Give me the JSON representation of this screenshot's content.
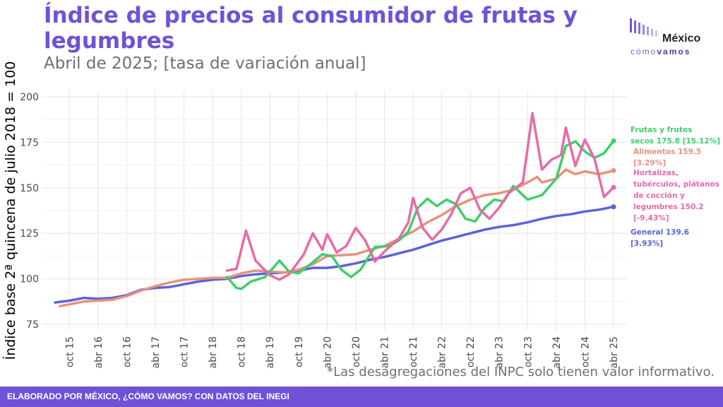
{
  "header": {
    "title": "Índice de precios al consumidor de frutas y legumbres",
    "subtitle": "Abril de 2025; [tasa de variación anual]"
  },
  "logo": {
    "word": "México",
    "sub_light": "cómo",
    "sub_bold": "vamos"
  },
  "note": "*Las desagregaciones del INPC solo tienen valor informativo.",
  "footer": "ELABORADO POR MÉXICO, ¿CÓMO VAMOS? CON DATOS DEL INEGI",
  "chart_data": {
    "type": "line",
    "ylabel": "Índice base 2ª quincena de julio 2018 = 100",
    "ylim": [
      75,
      200
    ],
    "yticks": [
      75,
      100,
      125,
      150,
      175,
      200
    ],
    "grid": true,
    "x_start": "2015-07",
    "x_end": "2025-04",
    "xticks": [
      {
        "label": "oct 15",
        "date": "2015-10"
      },
      {
        "label": "abr 16",
        "date": "2016-04"
      },
      {
        "label": "oct 16",
        "date": "2016-10"
      },
      {
        "label": "abr 17",
        "date": "2017-04"
      },
      {
        "label": "oct 17",
        "date": "2017-10"
      },
      {
        "label": "abr 18",
        "date": "2018-04"
      },
      {
        "label": "oct 18",
        "date": "2018-10"
      },
      {
        "label": "abr 19",
        "date": "2019-04"
      },
      {
        "label": "oct 19",
        "date": "2019-10"
      },
      {
        "label": "abr 20",
        "date": "2020-04"
      },
      {
        "label": "oct 20",
        "date": "2020-10"
      },
      {
        "label": "abr 21",
        "date": "2021-04"
      },
      {
        "label": "oct 21",
        "date": "2021-10"
      },
      {
        "label": "abr 22",
        "date": "2022-04"
      },
      {
        "label": "oct 22",
        "date": "2022-10"
      },
      {
        "label": "abr 23",
        "date": "2023-04"
      },
      {
        "label": "oct 23",
        "date": "2023-10"
      },
      {
        "label": "abr 24",
        "date": "2024-04"
      },
      {
        "label": "oct 24",
        "date": "2024-10"
      },
      {
        "label": "abr 25",
        "date": "2025-04"
      }
    ],
    "series": [
      {
        "name": "General",
        "end_label": [
          "General 139.6",
          "[3.93%]"
        ],
        "color": "#5b63d8",
        "points": [
          [
            "2015-07",
            87.0
          ],
          [
            "2015-10",
            88.0
          ],
          [
            "2016-01",
            89.5
          ],
          [
            "2016-04",
            89.0
          ],
          [
            "2016-07",
            89.5
          ],
          [
            "2016-10",
            91.0
          ],
          [
            "2017-01",
            94.0
          ],
          [
            "2017-04",
            95.0
          ],
          [
            "2017-07",
            95.5
          ],
          [
            "2017-10",
            97.0
          ],
          [
            "2018-01",
            98.5
          ],
          [
            "2018-04",
            99.5
          ],
          [
            "2018-07",
            100.0
          ],
          [
            "2018-10",
            101.5
          ],
          [
            "2019-01",
            102.5
          ],
          [
            "2019-04",
            103.0
          ],
          [
            "2019-07",
            103.5
          ],
          [
            "2019-10",
            104.5
          ],
          [
            "2020-01",
            106.0
          ],
          [
            "2020-04",
            106.0
          ],
          [
            "2020-07",
            107.0
          ],
          [
            "2020-10",
            108.5
          ],
          [
            "2021-01",
            110.5
          ],
          [
            "2021-04",
            112.0
          ],
          [
            "2021-07",
            114.0
          ],
          [
            "2021-10",
            116.0
          ],
          [
            "2022-01",
            118.5
          ],
          [
            "2022-04",
            121.0
          ],
          [
            "2022-07",
            123.0
          ],
          [
            "2022-10",
            125.0
          ],
          [
            "2023-01",
            127.0
          ],
          [
            "2023-04",
            128.5
          ],
          [
            "2023-07",
            129.5
          ],
          [
            "2023-10",
            131.0
          ],
          [
            "2024-01",
            133.0
          ],
          [
            "2024-04",
            134.5
          ],
          [
            "2024-07",
            135.5
          ],
          [
            "2024-10",
            137.0
          ],
          [
            "2025-01",
            138.0
          ],
          [
            "2025-04",
            139.6
          ]
        ]
      },
      {
        "name": "Alimentos",
        "end_label": [
          "Alimentos 159.5",
          "[3.29%]"
        ],
        "color": "#e8927a",
        "points": [
          [
            "2015-08",
            85.0
          ],
          [
            "2015-10",
            86.0
          ],
          [
            "2016-01",
            87.5
          ],
          [
            "2016-04",
            88.0
          ],
          [
            "2016-07",
            88.5
          ],
          [
            "2016-10",
            90.5
          ],
          [
            "2017-01",
            93.5
          ],
          [
            "2017-04",
            96.0
          ],
          [
            "2017-07",
            98.0
          ],
          [
            "2017-10",
            99.5
          ],
          [
            "2018-01",
            100.0
          ],
          [
            "2018-04",
            100.5
          ],
          [
            "2018-07",
            100.5
          ],
          [
            "2018-10",
            103.0
          ],
          [
            "2019-01",
            104.5
          ],
          [
            "2019-04",
            104.0
          ],
          [
            "2019-07",
            103.5
          ],
          [
            "2019-10",
            105.0
          ],
          [
            "2020-01",
            108.0
          ],
          [
            "2020-04",
            112.5
          ],
          [
            "2020-07",
            113.0
          ],
          [
            "2020-10",
            113.5
          ],
          [
            "2021-01",
            116.0
          ],
          [
            "2021-04",
            118.0
          ],
          [
            "2021-07",
            122.0
          ],
          [
            "2021-10",
            126.0
          ],
          [
            "2022-01",
            131.0
          ],
          [
            "2022-04",
            135.0
          ],
          [
            "2022-07",
            140.0
          ],
          [
            "2022-10",
            143.5
          ],
          [
            "2023-01",
            146.0
          ],
          [
            "2023-04",
            147.0
          ],
          [
            "2023-07",
            149.0
          ],
          [
            "2023-10",
            153.0
          ],
          [
            "2023-12",
            156.0
          ],
          [
            "2024-01",
            153.0
          ],
          [
            "2024-04",
            155.0
          ],
          [
            "2024-06",
            160.0
          ],
          [
            "2024-08",
            157.5
          ],
          [
            "2024-10",
            159.0
          ],
          [
            "2025-01",
            157.5
          ],
          [
            "2025-04",
            159.5
          ]
        ]
      },
      {
        "name": "Frutas y frutos secos",
        "end_label": [
          "Frutas y frutos",
          "secos 175.8 [15.12%]"
        ],
        "color": "#3fce6a",
        "points": [
          [
            "2018-07",
            101.0
          ],
          [
            "2018-09",
            95.0
          ],
          [
            "2018-10",
            94.5
          ],
          [
            "2018-12",
            98.5
          ],
          [
            "2019-03",
            101.0
          ],
          [
            "2019-06",
            110.0
          ],
          [
            "2019-08",
            104.0
          ],
          [
            "2019-10",
            103.0
          ],
          [
            "2019-12",
            107.0
          ],
          [
            "2020-03",
            113.5
          ],
          [
            "2020-05",
            112.5
          ],
          [
            "2020-07",
            105.0
          ],
          [
            "2020-09",
            101.0
          ],
          [
            "2020-11",
            105.0
          ],
          [
            "2021-02",
            117.5
          ],
          [
            "2021-05",
            118.0
          ],
          [
            "2021-07",
            121.0
          ],
          [
            "2021-09",
            126.0
          ],
          [
            "2021-11",
            139.0
          ],
          [
            "2022-01",
            144.0
          ],
          [
            "2022-03",
            140.0
          ],
          [
            "2022-05",
            143.5
          ],
          [
            "2022-07",
            141.0
          ],
          [
            "2022-09",
            133.0
          ],
          [
            "2022-11",
            131.5
          ],
          [
            "2023-01",
            139.0
          ],
          [
            "2023-03",
            143.5
          ],
          [
            "2023-05",
            142.5
          ],
          [
            "2023-07",
            151.0
          ],
          [
            "2023-10",
            143.5
          ],
          [
            "2024-01",
            146.0
          ],
          [
            "2024-04",
            155.0
          ],
          [
            "2024-06",
            173.0
          ],
          [
            "2024-08",
            175.5
          ],
          [
            "2024-10",
            170.0
          ],
          [
            "2024-12",
            166.5
          ],
          [
            "2025-02",
            169.0
          ],
          [
            "2025-04",
            175.8
          ]
        ]
      },
      {
        "name": "Hortalizas, tubérculos, plátanos de cocción y legumbres",
        "end_label": [
          "Hortalizas,",
          "tubérculos, plátanos",
          "de cocción y",
          "legumbres 150.2",
          "[-9.43%]"
        ],
        "color": "#e86aa8",
        "points": [
          [
            "2018-07",
            104.5
          ],
          [
            "2018-09",
            105.5
          ],
          [
            "2018-11",
            126.5
          ],
          [
            "2019-01",
            110.0
          ],
          [
            "2019-04",
            102.0
          ],
          [
            "2019-06",
            99.5
          ],
          [
            "2019-08",
            102.5
          ],
          [
            "2019-11",
            113.0
          ],
          [
            "2020-01",
            125.0
          ],
          [
            "2020-03",
            116.0
          ],
          [
            "2020-04",
            124.5
          ],
          [
            "2020-06",
            114.5
          ],
          [
            "2020-08",
            118.0
          ],
          [
            "2020-10",
            128.0
          ],
          [
            "2020-12",
            121.0
          ],
          [
            "2021-02",
            109.5
          ],
          [
            "2021-04",
            115.0
          ],
          [
            "2021-07",
            122.0
          ],
          [
            "2021-09",
            131.0
          ],
          [
            "2021-10",
            144.5
          ],
          [
            "2021-12",
            128.0
          ],
          [
            "2022-02",
            121.5
          ],
          [
            "2022-04",
            127.0
          ],
          [
            "2022-06",
            135.5
          ],
          [
            "2022-08",
            147.0
          ],
          [
            "2022-10",
            150.0
          ],
          [
            "2022-12",
            138.0
          ],
          [
            "2023-02",
            133.0
          ],
          [
            "2023-04",
            139.0
          ],
          [
            "2023-06",
            147.0
          ],
          [
            "2023-09",
            153.0
          ],
          [
            "2023-11",
            191.0
          ],
          [
            "2024-01",
            160.0
          ],
          [
            "2024-03",
            165.5
          ],
          [
            "2024-05",
            168.0
          ],
          [
            "2024-06",
            183.0
          ],
          [
            "2024-08",
            162.0
          ],
          [
            "2024-10",
            176.5
          ],
          [
            "2024-12",
            166.0
          ],
          [
            "2025-02",
            145.0
          ],
          [
            "2025-04",
            150.2
          ]
        ]
      }
    ]
  }
}
